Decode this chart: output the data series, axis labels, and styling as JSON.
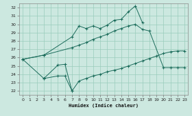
{
  "xlabel": "Humidex (Indice chaleur)",
  "bg_color": "#cce8e0",
  "grid_color": "#99ccbb",
  "line_color": "#1a6b5a",
  "xlim": [
    -0.5,
    23.5
  ],
  "ylim": [
    21.5,
    32.5
  ],
  "xticks": [
    0,
    1,
    2,
    3,
    4,
    5,
    6,
    7,
    8,
    9,
    10,
    11,
    12,
    13,
    14,
    15,
    16,
    17,
    18,
    19,
    20,
    21,
    22,
    23
  ],
  "yticks": [
    22,
    23,
    24,
    25,
    26,
    27,
    28,
    29,
    30,
    31,
    32
  ],
  "line1_x": [
    0,
    3,
    7,
    8,
    9,
    10,
    11,
    12,
    13,
    14,
    15,
    16,
    17
  ],
  "line1_y": [
    25.8,
    26.3,
    28.5,
    29.8,
    29.5,
    29.8,
    29.5,
    29.9,
    30.5,
    30.6,
    31.5,
    32.2,
    30.2
  ],
  "line2_x": [
    0,
    3,
    7,
    8,
    9,
    10,
    11,
    12,
    13,
    14,
    15,
    16,
    17,
    18,
    20,
    21,
    22,
    23
  ],
  "line2_y": [
    25.8,
    26.3,
    27.2,
    27.5,
    27.8,
    28.2,
    28.5,
    28.8,
    29.2,
    29.5,
    29.8,
    30.0,
    29.4,
    29.2,
    24.8,
    24.8,
    24.8,
    24.8
  ],
  "line3_x": [
    0,
    3,
    5,
    6,
    7,
    8,
    9,
    10,
    11,
    12,
    13,
    14,
    15,
    16,
    17,
    18,
    19,
    20,
    21,
    22,
    23
  ],
  "line3_y": [
    25.8,
    23.5,
    23.8,
    23.8,
    22.0,
    23.2,
    23.5,
    23.8,
    24.0,
    24.3,
    24.5,
    24.7,
    25.0,
    25.3,
    25.6,
    25.9,
    26.2,
    26.5,
    26.7,
    26.8,
    26.8
  ],
  "line4_x": [
    3,
    5,
    6,
    7
  ],
  "line4_y": [
    23.5,
    25.1,
    25.2,
    22.0
  ]
}
